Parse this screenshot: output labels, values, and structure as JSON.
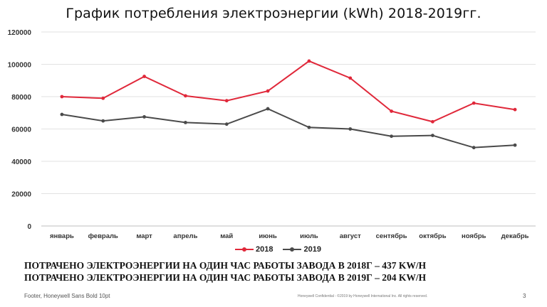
{
  "title": "График потребления электроэнергии (kWh) 2018-2019гг.",
  "chart_data": {
    "type": "line",
    "title": "График потребления электроэнергии (kWh) 2018-2019гг.",
    "categories": [
      "январь",
      "февраль",
      "март",
      "апрель",
      "май",
      "июнь",
      "июль",
      "август",
      "сентябрь",
      "октябрь",
      "ноябрь",
      "декабрь"
    ],
    "series": [
      {
        "name": "2018",
        "color": "#e0283a",
        "values": [
          80000,
          79000,
          92500,
          80500,
          77500,
          83500,
          102000,
          91500,
          71000,
          64500,
          76000,
          72000
        ]
      },
      {
        "name": "2019",
        "color": "#4a4a4a",
        "values": [
          69000,
          65000,
          67500,
          64000,
          63000,
          72500,
          61000,
          60000,
          55500,
          56000,
          48500,
          50000
        ]
      }
    ],
    "ylim": [
      0,
      120000
    ],
    "yticks": [
      0,
      20000,
      40000,
      60000,
      80000,
      100000,
      120000
    ],
    "grid": true,
    "legend_position": "bottom"
  },
  "summary": {
    "line1": "ПОТРАЧЕНО ЭЛЕКТРОЭНЕРГИИ НА ОДИН ЧАС РАБОТЫ ЗАВОДА В 2018Г – 437 KW/H",
    "line2": "ПОТРАЧЕНО ЭЛЕКТРОЭНЕРГИИ НА ОДИН ЧАС РАБОТЫ ЗАВОДА В 2019Г – 204 KW/H"
  },
  "footer": {
    "left": "Footer, Honeywell Sans Bold 10pt",
    "center": "Honeywell Confidential - ©2019 by Honeywell International Inc. All rights reserved.",
    "page": "3"
  }
}
